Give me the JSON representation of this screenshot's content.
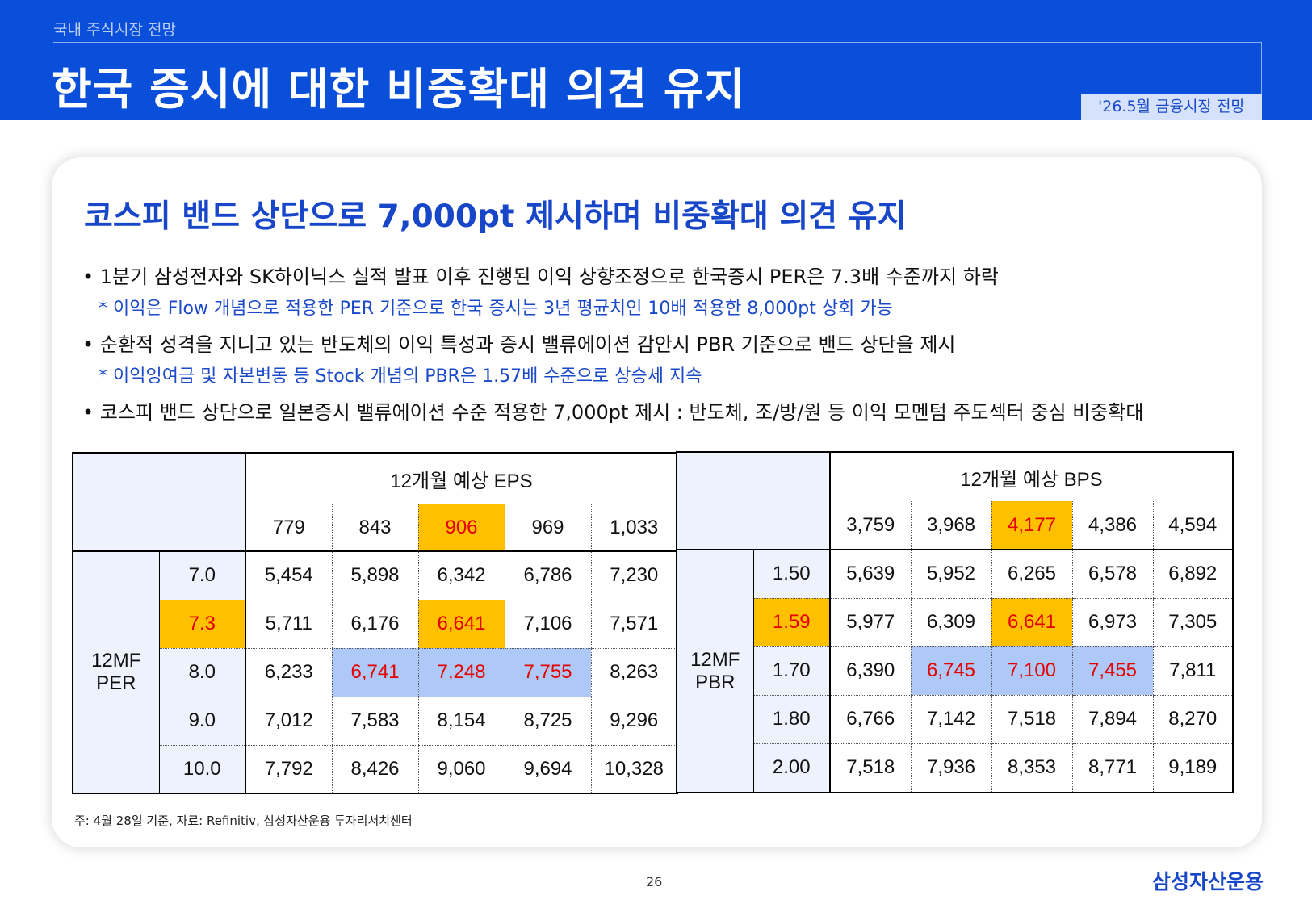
{
  "header": {
    "section": "국내 주식시장 전망",
    "title": "한국 증시에 대한 비중확대 의견 유지",
    "tag": "'26.5월 금융시장 전망"
  },
  "subtitle": "코스피 밴드 상단으로 7,000pt 제시하며 비중확대 의견 유지",
  "bullets": [
    "• 1분기 삼성전자와 SK하이닉스 실적 발표 이후 진행된 이익 상향조정으로 한국증시 PER은 7.3배 수준까지 하락",
    "• 순환적 성격을 지니고 있는 반도체의 이익 특성과 증시 밸류에이션 감안시 PBR 기준으로 밴드 상단을 제시",
    "• 코스피 밴드 상단으로 일본증시 밸류에이션 수준 적용한 7,000pt 제시 : 반도체, 조/방/원 등 이익 모멘텀 주도섹터 중심 비중확대"
  ],
  "notes": [
    "* 이익은 Flow 개념으로 적용한 PER 기준으로 한국 증시는 3년 평균치인 10배 적용한 8,000pt 상회 가능",
    "* 이익잉여금 및 자본변동 등 Stock 개념의 PBR은 1.57배 수준으로 상승세 지속"
  ],
  "per_table": {
    "header": "12개월 예상 EPS",
    "side_label_line1": "12MF",
    "side_label_line2": "PER",
    "cols": [
      "779",
      "843",
      "906",
      "969",
      "1,033"
    ],
    "rows": [
      {
        "label": "7.0",
        "values": [
          "5,454",
          "5,898",
          "6,342",
          "6,786",
          "7,230"
        ]
      },
      {
        "label": "7.3",
        "values": [
          "5,711",
          "6,176",
          "6,641",
          "7,106",
          "7,571"
        ]
      },
      {
        "label": "8.0",
        "values": [
          "6,233",
          "6,741",
          "7,248",
          "7,755",
          "8,263"
        ]
      },
      {
        "label": "9.0",
        "values": [
          "7,012",
          "7,583",
          "8,154",
          "8,725",
          "9,296"
        ]
      },
      {
        "label": "10.0",
        "values": [
          "7,792",
          "8,426",
          "9,060",
          "9,694",
          "10,328"
        ]
      }
    ]
  },
  "pbr_table": {
    "header": "12개월 예상 BPS",
    "side_label_line1": "12MF",
    "side_label_line2": "PBR",
    "cols": [
      "3,759",
      "3,968",
      "4,177",
      "4,386",
      "4,594"
    ],
    "rows": [
      {
        "label": "1.50",
        "values": [
          "5,639",
          "5,952",
          "6,265",
          "6,578",
          "6,892"
        ]
      },
      {
        "label": "1.59",
        "values": [
          "5,977",
          "6,309",
          "6,641",
          "6,973",
          "7,305"
        ]
      },
      {
        "label": "1.70",
        "values": [
          "6,390",
          "6,745",
          "7,100",
          "7,455",
          "7,811"
        ]
      },
      {
        "label": "1.80",
        "values": [
          "6,766",
          "7,142",
          "7,518",
          "7,894",
          "8,270"
        ]
      },
      {
        "label": "2.00",
        "values": [
          "7,518",
          "7,936",
          "8,353",
          "8,771",
          "9,189"
        ]
      }
    ]
  },
  "colors": {
    "header_blue": "#0a4fd9",
    "highlight_gold": "#ffc000",
    "highlight_blue": "#aec8f8",
    "emphasis_red": "#e60000",
    "accent_text": "#1746c9"
  },
  "footnote": "주: 4월 28일 기준, 자료: Refinitiv, 삼성자산운용 투자리서치센터",
  "page_number": "26",
  "logo": "삼성자산운용"
}
